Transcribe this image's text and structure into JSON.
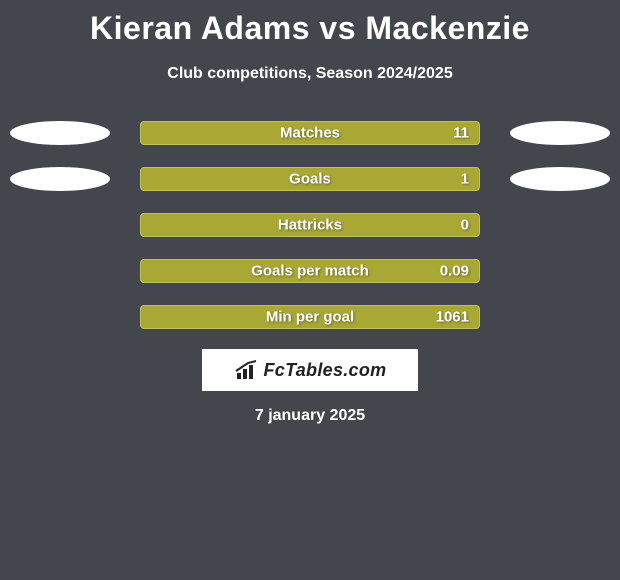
{
  "background_color": "#44464d",
  "text_color": "#ffffff",
  "title": "Kieran Adams vs Mackenzie",
  "title_fontsize": 32,
  "subtitle": "Club competitions, Season 2024/2025",
  "subtitle_fontsize": 16,
  "bar_track_color": "#aaa834",
  "bar_track_border": "#c3c15a",
  "bar_fill_color": "#aaa834",
  "bar_text_color": "#ffffff",
  "ellipse_color": "#ffffff",
  "rows": [
    {
      "label": "Matches",
      "value": "11",
      "fill_pct": 100,
      "left_ellipse_w": 100,
      "left_ellipse_h": 24,
      "right_ellipse_w": 100,
      "right_ellipse_h": 24
    },
    {
      "label": "Goals",
      "value": "1",
      "fill_pct": 100,
      "left_ellipse_w": 100,
      "left_ellipse_h": 24,
      "right_ellipse_w": 100,
      "right_ellipse_h": 24
    },
    {
      "label": "Hattricks",
      "value": "0",
      "fill_pct": 100,
      "left_ellipse_w": 0,
      "left_ellipse_h": 0,
      "right_ellipse_w": 0,
      "right_ellipse_h": 0
    },
    {
      "label": "Goals per match",
      "value": "0.09",
      "fill_pct": 100,
      "left_ellipse_w": 0,
      "left_ellipse_h": 0,
      "right_ellipse_w": 0,
      "right_ellipse_h": 0
    },
    {
      "label": "Min per goal",
      "value": "1061",
      "fill_pct": 100,
      "left_ellipse_w": 0,
      "left_ellipse_h": 0,
      "right_ellipse_w": 0,
      "right_ellipse_h": 0
    }
  ],
  "brand": {
    "label": "FcTables.com",
    "box_bg": "#ffffff",
    "box_fg": "#222222"
  },
  "date_footer": "7 january 2025"
}
